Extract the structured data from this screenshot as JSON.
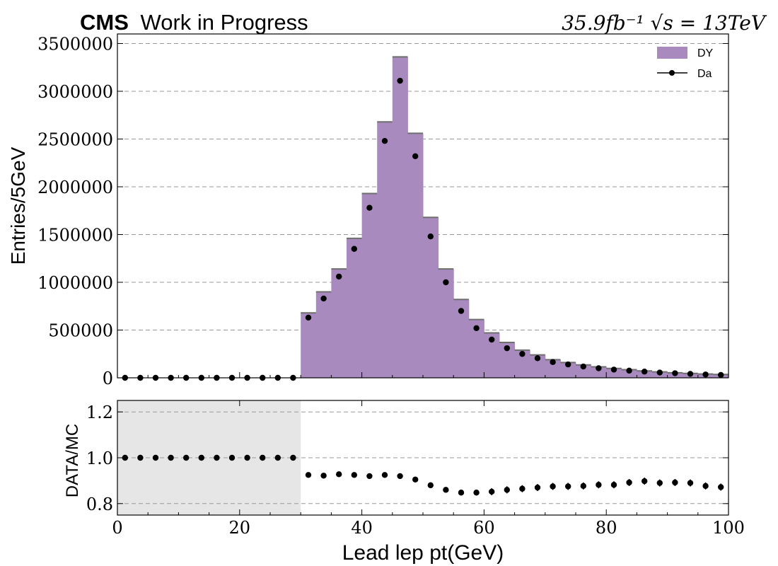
{
  "header": {
    "cms": "CMS",
    "subtitle": "Work in Progress",
    "lumi": "35.9fb⁻¹ √s = 13TeV"
  },
  "chart_data": [
    {
      "type": "bar",
      "panel": "main",
      "xlabel": "Lead lep pt(GeV)",
      "ylabel": "Entries/5GeV",
      "xlim": [
        0,
        100
      ],
      "ylim": [
        0,
        3600000
      ],
      "yticks": [
        "0",
        "500000",
        "1000000",
        "1500000",
        "2000000",
        "2500000",
        "3000000",
        "3500000"
      ],
      "grid": true,
      "legend_position": "top-right",
      "legend": [
        "DY",
        "Da"
      ],
      "series": [
        {
          "name": "DY",
          "kind": "histogram",
          "color": "#a88abf",
          "bin_edges": [
            30,
            32.5,
            35,
            37.5,
            40,
            42.5,
            45,
            47.5,
            50,
            52.5,
            55,
            57.5,
            60,
            62.5,
            65,
            67.5,
            70,
            72.5,
            75,
            77.5,
            80,
            82.5,
            85,
            87.5,
            90,
            92.5,
            95,
            97.5,
            100
          ],
          "values": [
            680000,
            900000,
            1140000,
            1460000,
            1930000,
            2680000,
            3360000,
            2560000,
            1680000,
            1140000,
            820000,
            610000,
            470000,
            370000,
            290000,
            240000,
            190000,
            160000,
            135000,
            115000,
            98000,
            85000,
            72000,
            62000,
            53000,
            46000,
            40000,
            35000
          ]
        },
        {
          "name": "Da",
          "kind": "points",
          "color": "#000000",
          "x": [
            1.25,
            3.75,
            6.25,
            8.75,
            11.25,
            13.75,
            16.25,
            18.75,
            21.25,
            23.75,
            26.25,
            28.75,
            31.25,
            33.75,
            36.25,
            38.75,
            41.25,
            43.75,
            46.25,
            48.75,
            51.25,
            53.75,
            56.25,
            58.75,
            61.25,
            63.75,
            66.25,
            68.75,
            71.25,
            73.75,
            76.25,
            78.75,
            81.25,
            83.75,
            86.25,
            88.75,
            91.25,
            93.75,
            96.25,
            98.75
          ],
          "values": [
            0,
            0,
            0,
            0,
            0,
            0,
            0,
            0,
            0,
            0,
            0,
            0,
            630000,
            830000,
            1060000,
            1350000,
            1780000,
            2480000,
            3110000,
            2320000,
            1480000,
            1000000,
            700000,
            520000,
            400000,
            310000,
            250000,
            205000,
            165000,
            140000,
            118000,
            100000,
            86000,
            75000,
            65000,
            55000,
            48000,
            41000,
            35000,
            30000
          ]
        }
      ]
    },
    {
      "type": "scatter",
      "panel": "ratio",
      "xlabel": "Lead lep pt(GeV)",
      "ylabel": "DATA/MC",
      "xlim": [
        0,
        100
      ],
      "ylim": [
        0.75,
        1.25
      ],
      "xticks": [
        "0",
        "20",
        "40",
        "60",
        "80",
        "100"
      ],
      "yticks": [
        "0.8",
        "1.0",
        "1.2"
      ],
      "grid": true,
      "shaded_region": [
        0,
        30
      ],
      "series": [
        {
          "name": "DATA/MC",
          "x": [
            1.25,
            3.75,
            6.25,
            8.75,
            11.25,
            13.75,
            16.25,
            18.75,
            21.25,
            23.75,
            26.25,
            28.75,
            31.25,
            33.75,
            36.25,
            38.75,
            41.25,
            43.75,
            46.25,
            48.75,
            51.25,
            53.75,
            56.25,
            58.75,
            61.25,
            63.75,
            66.25,
            68.75,
            71.25,
            73.75,
            76.25,
            78.75,
            81.25,
            83.75,
            86.25,
            88.75,
            91.25,
            93.75,
            96.25,
            98.75
          ],
          "values": [
            1.0,
            1.0,
            1.0,
            1.0,
            1.0,
            1.0,
            1.0,
            1.0,
            1.0,
            1.0,
            1.0,
            1.0,
            0.925,
            0.922,
            0.928,
            0.925,
            0.92,
            0.925,
            0.92,
            0.905,
            0.88,
            0.86,
            0.848,
            0.848,
            0.852,
            0.86,
            0.865,
            0.87,
            0.875,
            0.875,
            0.877,
            0.882,
            0.882,
            0.892,
            0.898,
            0.89,
            0.892,
            0.89,
            0.877,
            0.872
          ]
        }
      ]
    }
  ]
}
